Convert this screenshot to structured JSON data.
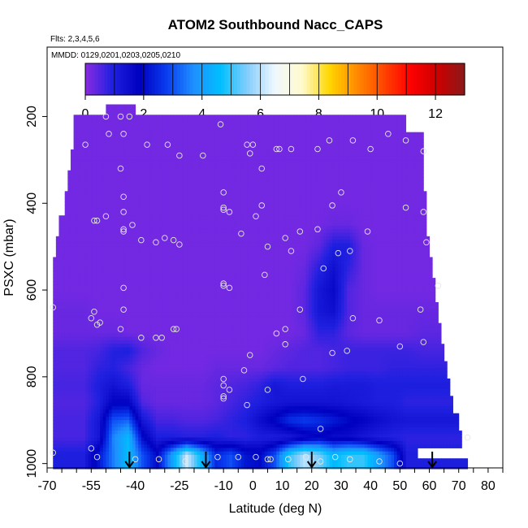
{
  "chart_data": {
    "type": "heatmap",
    "title": "ATOM2 Southbound Nacc_CAPS",
    "subtitle_flights": "Flts: 2,3,4,5,6",
    "subtitle_dates": "MMDD: 0129,0201,0203,0205,0210",
    "xlabel": "Latitude (deg N)",
    "ylabel": "PSXC (mbar)",
    "xlim": [
      -70,
      85
    ],
    "ylim": [
      1010,
      40
    ],
    "y_reversed": true,
    "x_ticks": [
      -70,
      -65,
      -60,
      -55,
      -50,
      -45,
      -40,
      -35,
      -30,
      -25,
      -20,
      -15,
      -10,
      -5,
      0,
      5,
      10,
      15,
      20,
      25,
      30,
      35,
      40,
      45,
      50,
      55,
      60,
      65,
      70,
      75,
      80,
      85
    ],
    "x_tick_labels": [
      {
        "value": -70,
        "label": "-70"
      },
      {
        "value": -55,
        "label": "-55"
      },
      {
        "value": -40,
        "label": "-40"
      },
      {
        "value": -25,
        "label": "-25"
      },
      {
        "value": -10,
        "label": "-10"
      },
      {
        "value": 0,
        "label": "0"
      },
      {
        "value": 10,
        "label": "10"
      },
      {
        "value": 20,
        "label": "20"
      },
      {
        "value": 30,
        "label": "30"
      },
      {
        "value": 40,
        "label": "40"
      },
      {
        "value": 50,
        "label": "50"
      },
      {
        "value": 60,
        "label": "60"
      },
      {
        "value": 70,
        "label": "70"
      },
      {
        "value": 80,
        "label": "80"
      }
    ],
    "y_ticks": [
      200,
      400,
      600,
      800,
      1000
    ],
    "y_tick_labels": [
      "200",
      "400",
      "600",
      "800",
      "1000"
    ],
    "colorbar": {
      "range": [
        0,
        13
      ],
      "ticks": [
        0,
        2,
        4,
        6,
        8,
        10,
        12
      ],
      "tick_labels": [
        "0",
        "2",
        "4",
        "6",
        "8",
        "10",
        "12"
      ],
      "colors": [
        "#8a2be2",
        "#2020e0",
        "#0000c0",
        "#0a3cf0",
        "#1e90ff",
        "#00bfff",
        "#87cefa",
        "#f0f8ff",
        "#fffacd",
        "#ffd700",
        "#ff8c00",
        "#ff4500",
        "#ff0000",
        "#cc0000",
        "#8b1a1a"
      ]
    },
    "grid": false,
    "columns_lat": [
      -57.5,
      -52.5,
      -47.5,
      -42.5,
      -37.5,
      -32.5,
      -27.5,
      -22.5,
      -17.5,
      -12.5,
      -7.5,
      -2.5,
      2.5,
      7.5,
      12.5,
      17.5,
      22.5,
      27.5,
      32.5,
      37.5,
      42.5,
      47.5,
      52.5,
      57.5,
      62.5,
      67.5
    ],
    "layers": [
      {
        "p": 980,
        "v": [
          1.0,
          2.2,
          3.5,
          4.6,
          3.0,
          2.0,
          4.0,
          6.2,
          4.5,
          2.5,
          3.0,
          2.2,
          2.0,
          3.0,
          5.0,
          6.0,
          5.5,
          4.5,
          5.0,
          5.0,
          4.0,
          3.0,
          1.0,
          1.0,
          1.0,
          1.0
        ]
      },
      {
        "p": 940,
        "v": [
          0.6,
          1.2,
          3.6,
          4.5,
          2.0,
          1.0,
          1.0,
          0.9,
          0.9,
          1.0,
          0.8,
          0.8,
          1.0,
          1.0,
          1.1,
          1.5,
          1.8,
          1.5,
          1.5,
          1.2,
          1.0,
          0.9,
          0.8,
          0.8,
          0.8,
          0.8
        ]
      },
      {
        "p": 900,
        "v": [
          0.6,
          1.2,
          3.0,
          3.2,
          1.2,
          0.6,
          0.6,
          0.5,
          0.5,
          0.6,
          0.8,
          1.0,
          1.5,
          2.0,
          2.6,
          2.8,
          2.6,
          2.3,
          2.0,
          1.8,
          1.5,
          1.3,
          1.2,
          1.2,
          1.2,
          1.2
        ]
      },
      {
        "p": 860,
        "v": [
          0.5,
          0.9,
          1.8,
          1.8,
          0.5,
          0.3,
          0.3,
          0.3,
          0.3,
          0.4,
          0.6,
          0.8,
          1.0,
          1.2,
          1.3,
          1.3,
          1.3,
          1.3,
          1.2,
          1.1,
          1.0,
          1.0,
          0.8,
          0.8,
          0.8,
          0.8
        ]
      },
      {
        "p": 820,
        "v": [
          0.6,
          1.0,
          1.3,
          1.0,
          0.3,
          0.3,
          0.3,
          0.3,
          0.3,
          0.4,
          0.5,
          0.6,
          0.8,
          1.2,
          1.0,
          1.0,
          1.0,
          1.1,
          1.1,
          1.1,
          1.0,
          1.0,
          1.0,
          1.0,
          1.0,
          1.0
        ]
      },
      {
        "p": 780,
        "v": [
          0.5,
          0.8,
          0.9,
          0.6,
          0.3,
          0.2,
          0.2,
          0.2,
          0.2,
          0.3,
          0.3,
          0.3,
          0.3,
          0.4,
          0.5,
          0.5,
          0.5,
          0.6,
          0.7,
          0.7,
          0.7,
          0.8,
          0.8,
          0.8,
          0.8,
          0.8
        ]
      },
      {
        "p": 740,
        "v": [
          0.5,
          0.6,
          0.9,
          1.0,
          0.5,
          0.3,
          0.2,
          0.2,
          0.2,
          0.2,
          0.2,
          0.2,
          0.2,
          0.3,
          0.4,
          0.5,
          0.5,
          0.6,
          0.7,
          0.7,
          0.7,
          0.7,
          0.7,
          0.6,
          0.6,
          0.6
        ]
      },
      {
        "p": 700,
        "v": [
          0.3,
          0.3,
          0.3,
          0.2,
          0.2,
          0.2,
          0.2,
          0.2,
          0.2,
          0.2,
          0.2,
          0.2,
          0.2,
          0.2,
          0.2,
          0.3,
          0.8,
          0.8,
          0.4,
          0.3,
          0.3,
          0.3,
          0.3,
          0.4,
          0.4,
          0.4
        ]
      },
      {
        "p": 650,
        "v": [
          0.3,
          0.2,
          0.2,
          0.2,
          0.2,
          0.2,
          0.2,
          0.2,
          0.2,
          0.2,
          0.2,
          0.2,
          0.2,
          0.2,
          0.2,
          0.4,
          1.2,
          1.4,
          0.5,
          0.3,
          0.3,
          0.3,
          0.3,
          0.3,
          0.3,
          0.3
        ]
      },
      {
        "p": 600,
        "v": [
          0.2,
          0.2,
          0.2,
          0.2,
          0.2,
          0.2,
          0.2,
          0.2,
          0.2,
          0.2,
          0.2,
          0.2,
          0.2,
          0.2,
          0.2,
          0.4,
          1.2,
          1.6,
          0.5,
          0.3,
          0.2,
          0.2,
          0.2,
          0.2,
          0.2,
          0.2
        ]
      },
      {
        "p": 550,
        "v": [
          0.2,
          0.2,
          0.2,
          0.2,
          0.2,
          0.2,
          0.2,
          0.2,
          0.2,
          0.2,
          0.2,
          0.2,
          0.2,
          0.2,
          0.2,
          0.3,
          0.9,
          1.4,
          0.8,
          0.3,
          0.2,
          0.2,
          0.2,
          0.2,
          0.2,
          0.2
        ]
      },
      {
        "p": 500,
        "v": [
          0.2,
          0.2,
          0.2,
          0.2,
          0.2,
          0.2,
          0.2,
          0.2,
          0.2,
          0.2,
          0.2,
          0.2,
          0.2,
          0.2,
          0.2,
          0.2,
          0.4,
          1.0,
          1.0,
          0.3,
          0.2,
          0.2,
          0.2,
          0.2,
          0.2,
          0.2
        ]
      },
      {
        "p": 450,
        "v": [
          0.2,
          0.2,
          0.2,
          0.2,
          0.2,
          0.2,
          0.2,
          0.2,
          0.2,
          0.2,
          0.2,
          0.2,
          0.2,
          0.2,
          0.2,
          0.2,
          0.2,
          0.3,
          0.3,
          0.2,
          0.2,
          0.2,
          0.2,
          0.2,
          0.2,
          0.2
        ]
      },
      {
        "p": 400,
        "v": [
          0.2,
          0.2,
          0.2,
          0.2,
          0.2,
          0.2,
          0.2,
          0.2,
          0.2,
          0.2,
          0.2,
          0.2,
          0.2,
          0.2,
          0.2,
          0.2,
          0.2,
          0.2,
          0.2,
          0.2,
          0.2,
          0.2,
          0.2,
          0.2,
          0.2,
          0.2
        ]
      },
      {
        "p": 350,
        "v": [
          0.2,
          0.2,
          0.2,
          0.2,
          0.2,
          0.2,
          0.2,
          0.2,
          0.2,
          0.2,
          0.2,
          0.2,
          0.2,
          0.2,
          0.2,
          0.2,
          0.2,
          0.2,
          0.2,
          0.2,
          0.2,
          0.2,
          0.2,
          0.2,
          0.2,
          0.2
        ]
      },
      {
        "p": 300,
        "v": [
          0.2,
          0.2,
          0.2,
          0.2,
          0.2,
          0.2,
          0.2,
          0.2,
          0.2,
          0.2,
          0.2,
          0.2,
          0.2,
          0.2,
          0.2,
          0.2,
          0.2,
          0.2,
          0.2,
          0.2,
          0.2,
          0.2,
          0.2,
          0.2,
          0.2,
          0.2
        ]
      },
      {
        "p": 250,
        "v": [
          0.2,
          0.2,
          0.2,
          0.2,
          0.2,
          0.2,
          0.2,
          0.2,
          0.2,
          0.2,
          0.2,
          0.2,
          0.2,
          0.2,
          0.2,
          0.2,
          0.2,
          0.2,
          0.2,
          0.2,
          0.2,
          0.2,
          0.2,
          0.2,
          0.2,
          0.2
        ]
      },
      {
        "p": 215,
        "v": [
          0.2,
          0.2,
          0.2,
          0.2,
          0.2,
          0.2,
          0.2,
          0.2,
          0.2,
          0.2,
          0.2,
          0.2,
          0.2,
          0.2,
          0.2,
          0.2,
          0.2,
          0.2,
          0.2,
          0.2,
          0.2,
          0.2,
          0.2,
          0.2,
          0.2,
          0.2
        ]
      },
      {
        "p": 180,
        "v": [
          null,
          null,
          null,
          0.2,
          0.2,
          null,
          null,
          null,
          null,
          null,
          null,
          null,
          null,
          null,
          null,
          null,
          null,
          null,
          null,
          null,
          null,
          null,
          null,
          null,
          null,
          null
        ]
      }
    ],
    "coverage": [
      {
        "p": 180,
        "lat_min": -50,
        "lat_max": -40
      },
      {
        "p": 215,
        "lat_min": -61,
        "lat_max": 52
      },
      {
        "p": 250,
        "lat_min": -61,
        "lat_max": 58
      },
      {
        "p": 300,
        "lat_min": -62,
        "lat_max": 58
      },
      {
        "p": 350,
        "lat_min": -63,
        "lat_max": 58
      },
      {
        "p": 400,
        "lat_min": -64,
        "lat_max": 59
      },
      {
        "p": 450,
        "lat_min": -66,
        "lat_max": 59
      },
      {
        "p": 500,
        "lat_min": -67,
        "lat_max": 60
      },
      {
        "p": 550,
        "lat_min": -68,
        "lat_max": 61
      },
      {
        "p": 600,
        "lat_min": -68,
        "lat_max": 62
      },
      {
        "p": 650,
        "lat_min": -68,
        "lat_max": 63
      },
      {
        "p": 700,
        "lat_min": -68,
        "lat_max": 64
      },
      {
        "p": 740,
        "lat_min": -68,
        "lat_max": 65
      },
      {
        "p": 780,
        "lat_min": -68,
        "lat_max": 66
      },
      {
        "p": 820,
        "lat_min": -68,
        "lat_max": 67
      },
      {
        "p": 860,
        "lat_min": -68,
        "lat_max": 68
      },
      {
        "p": 900,
        "lat_min": -68,
        "lat_max": 70
      },
      {
        "p": 940,
        "lat_min": -68,
        "lat_max": 71
      },
      {
        "p": 980,
        "lat_min": -68,
        "lat_max": 56
      },
      {
        "p": 1000,
        "lat_min": -68,
        "lat_max": 73
      }
    ],
    "observations": [
      {
        "lat": -50,
        "p": 200
      },
      {
        "lat": -45,
        "p": 200
      },
      {
        "lat": -42,
        "p": 200
      },
      {
        "lat": -49,
        "p": 240
      },
      {
        "lat": -44,
        "p": 240
      },
      {
        "lat": -57,
        "p": 265
      },
      {
        "lat": -36,
        "p": 265
      },
      {
        "lat": -29,
        "p": 265
      },
      {
        "lat": -25,
        "p": 290
      },
      {
        "lat": -17,
        "p": 290
      },
      {
        "lat": -11,
        "p": 218
      },
      {
        "lat": -2,
        "p": 265
      },
      {
        "lat": 0,
        "p": 265
      },
      {
        "lat": -1,
        "p": 285
      },
      {
        "lat": 8,
        "p": 275
      },
      {
        "lat": 9,
        "p": 275
      },
      {
        "lat": 13,
        "p": 275
      },
      {
        "lat": 22,
        "p": 275
      },
      {
        "lat": 26,
        "p": 255
      },
      {
        "lat": 34,
        "p": 255
      },
      {
        "lat": 40,
        "p": 275
      },
      {
        "lat": 46,
        "p": 240
      },
      {
        "lat": 52,
        "p": 255
      },
      {
        "lat": 58,
        "p": 280
      },
      {
        "lat": 3,
        "p": 320
      },
      {
        "lat": -45,
        "p": 320
      },
      {
        "lat": -44,
        "p": 385
      },
      {
        "lat": -54,
        "p": 440
      },
      {
        "lat": -53,
        "p": 440
      },
      {
        "lat": -50,
        "p": 430
      },
      {
        "lat": -44,
        "p": 420
      },
      {
        "lat": -44,
        "p": 460
      },
      {
        "lat": -44,
        "p": 465
      },
      {
        "lat": -41,
        "p": 450
      },
      {
        "lat": -38,
        "p": 485
      },
      {
        "lat": -33,
        "p": 490
      },
      {
        "lat": -30,
        "p": 480
      },
      {
        "lat": -27,
        "p": 485
      },
      {
        "lat": -25,
        "p": 495
      },
      {
        "lat": -10,
        "p": 375
      },
      {
        "lat": -10,
        "p": 410
      },
      {
        "lat": -10,
        "p": 415
      },
      {
        "lat": -8,
        "p": 420
      },
      {
        "lat": 3,
        "p": 405
      },
      {
        "lat": 1,
        "p": 430
      },
      {
        "lat": -4,
        "p": 470
      },
      {
        "lat": 5,
        "p": 500
      },
      {
        "lat": 11,
        "p": 480
      },
      {
        "lat": 13,
        "p": 510
      },
      {
        "lat": 16,
        "p": 465
      },
      {
        "lat": 22,
        "p": 460
      },
      {
        "lat": 27,
        "p": 405
      },
      {
        "lat": 30,
        "p": 375
      },
      {
        "lat": 24,
        "p": 550
      },
      {
        "lat": 29,
        "p": 515
      },
      {
        "lat": 33,
        "p": 510
      },
      {
        "lat": 39,
        "p": 465
      },
      {
        "lat": 52,
        "p": 410
      },
      {
        "lat": 58,
        "p": 420
      },
      {
        "lat": 59,
        "p": 490
      },
      {
        "lat": 4,
        "p": 565
      },
      {
        "lat": -10,
        "p": 590
      },
      {
        "lat": -10,
        "p": 585
      },
      {
        "lat": -8,
        "p": 595
      },
      {
        "lat": -44,
        "p": 595
      },
      {
        "lat": -55,
        "p": 665
      },
      {
        "lat": -54,
        "p": 650
      },
      {
        "lat": -53,
        "p": 680
      },
      {
        "lat": -52,
        "p": 675
      },
      {
        "lat": -44,
        "p": 645
      },
      {
        "lat": -45,
        "p": 690
      },
      {
        "lat": -38,
        "p": 710
      },
      {
        "lat": -33,
        "p": 710
      },
      {
        "lat": -31,
        "p": 710
      },
      {
        "lat": -27,
        "p": 690
      },
      {
        "lat": -26,
        "p": 690
      },
      {
        "lat": -68,
        "p": 640
      },
      {
        "lat": 8,
        "p": 700
      },
      {
        "lat": 11,
        "p": 690
      },
      {
        "lat": 11,
        "p": 725
      },
      {
        "lat": 16,
        "p": 645
      },
      {
        "lat": 34,
        "p": 665
      },
      {
        "lat": 43,
        "p": 670
      },
      {
        "lat": 50,
        "p": 730
      },
      {
        "lat": 57,
        "p": 645
      },
      {
        "lat": 58,
        "p": 720
      },
      {
        "lat": 63,
        "p": 590
      },
      {
        "lat": -1,
        "p": 750
      },
      {
        "lat": 27,
        "p": 745
      },
      {
        "lat": 32,
        "p": 740
      },
      {
        "lat": -10,
        "p": 805
      },
      {
        "lat": -10,
        "p": 820
      },
      {
        "lat": -10,
        "p": 845
      },
      {
        "lat": -10,
        "p": 850
      },
      {
        "lat": -8,
        "p": 830
      },
      {
        "lat": -3,
        "p": 785
      },
      {
        "lat": 5,
        "p": 830
      },
      {
        "lat": 17,
        "p": 805
      },
      {
        "lat": -2,
        "p": 865
      },
      {
        "lat": 23,
        "p": 920
      },
      {
        "lat": -68,
        "p": 975
      },
      {
        "lat": -55,
        "p": 965
      },
      {
        "lat": -53,
        "p": 985
      },
      {
        "lat": -40,
        "p": 990
      },
      {
        "lat": -32,
        "p": 990
      },
      {
        "lat": -23,
        "p": 995
      },
      {
        "lat": -12,
        "p": 985
      },
      {
        "lat": -5,
        "p": 985
      },
      {
        "lat": 1,
        "p": 985
      },
      {
        "lat": 5,
        "p": 990
      },
      {
        "lat": 6,
        "p": 990
      },
      {
        "lat": 12,
        "p": 990
      },
      {
        "lat": 18,
        "p": 985
      },
      {
        "lat": 23,
        "p": 995
      },
      {
        "lat": 28,
        "p": 985
      },
      {
        "lat": 33,
        "p": 990
      },
      {
        "lat": 43,
        "p": 995
      },
      {
        "lat": 50,
        "p": 1000
      },
      {
        "lat": 73,
        "p": 940
      }
    ],
    "arrows_lat": [
      -42,
      -16,
      20,
      61
    ]
  }
}
